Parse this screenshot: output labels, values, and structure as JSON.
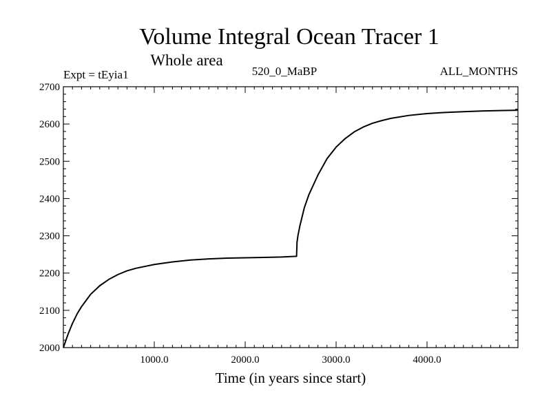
{
  "chart_data": {
    "type": "line",
    "title": "Volume Integral Ocean Tracer 1",
    "subtitle": "Whole area",
    "header_left": "Expt = tEyia1",
    "header_center": "520_0_MaBP",
    "header_right": "ALL_MONTHS",
    "xlabel": "Time (in years since start)",
    "ylabel": "",
    "xlim": [
      0,
      5000
    ],
    "ylim": [
      2000,
      2700
    ],
    "x_ticks_labeled": [
      1000,
      2000,
      3000,
      4000
    ],
    "x_tick_labels": [
      "1000.0",
      "2000.0",
      "3000.0",
      "4000.0"
    ],
    "y_ticks_labeled": [
      2000,
      2100,
      2200,
      2300,
      2400,
      2500,
      2600,
      2700
    ],
    "y_tick_labels": [
      "2000",
      "2100",
      "2200",
      "2300",
      "2400",
      "2500",
      "2600",
      "2700"
    ],
    "grid": false,
    "line_color": "#000000",
    "series": [
      {
        "x": [
          0,
          50,
          100,
          150,
          200,
          300,
          400,
          500,
          600,
          700,
          800,
          1000,
          1200,
          1400,
          1600,
          1800,
          2000,
          2200,
          2400,
          2560,
          2565,
          2570,
          2580,
          2600,
          2650,
          2700,
          2800,
          2900,
          3000,
          3100,
          3200,
          3300,
          3400,
          3500,
          3600,
          3800,
          4000,
          4200,
          4400,
          4600,
          4800,
          5000
        ],
        "y": [
          2000,
          2035,
          2065,
          2090,
          2110,
          2143,
          2166,
          2183,
          2196,
          2206,
          2213,
          2223,
          2230,
          2235,
          2238,
          2240,
          2241,
          2242,
          2243,
          2245,
          2245,
          2283,
          2300,
          2325,
          2375,
          2410,
          2463,
          2507,
          2538,
          2561,
          2579,
          2592,
          2602,
          2609,
          2615,
          2623,
          2628,
          2631,
          2633,
          2635,
          2636,
          2637
        ]
      }
    ]
  }
}
